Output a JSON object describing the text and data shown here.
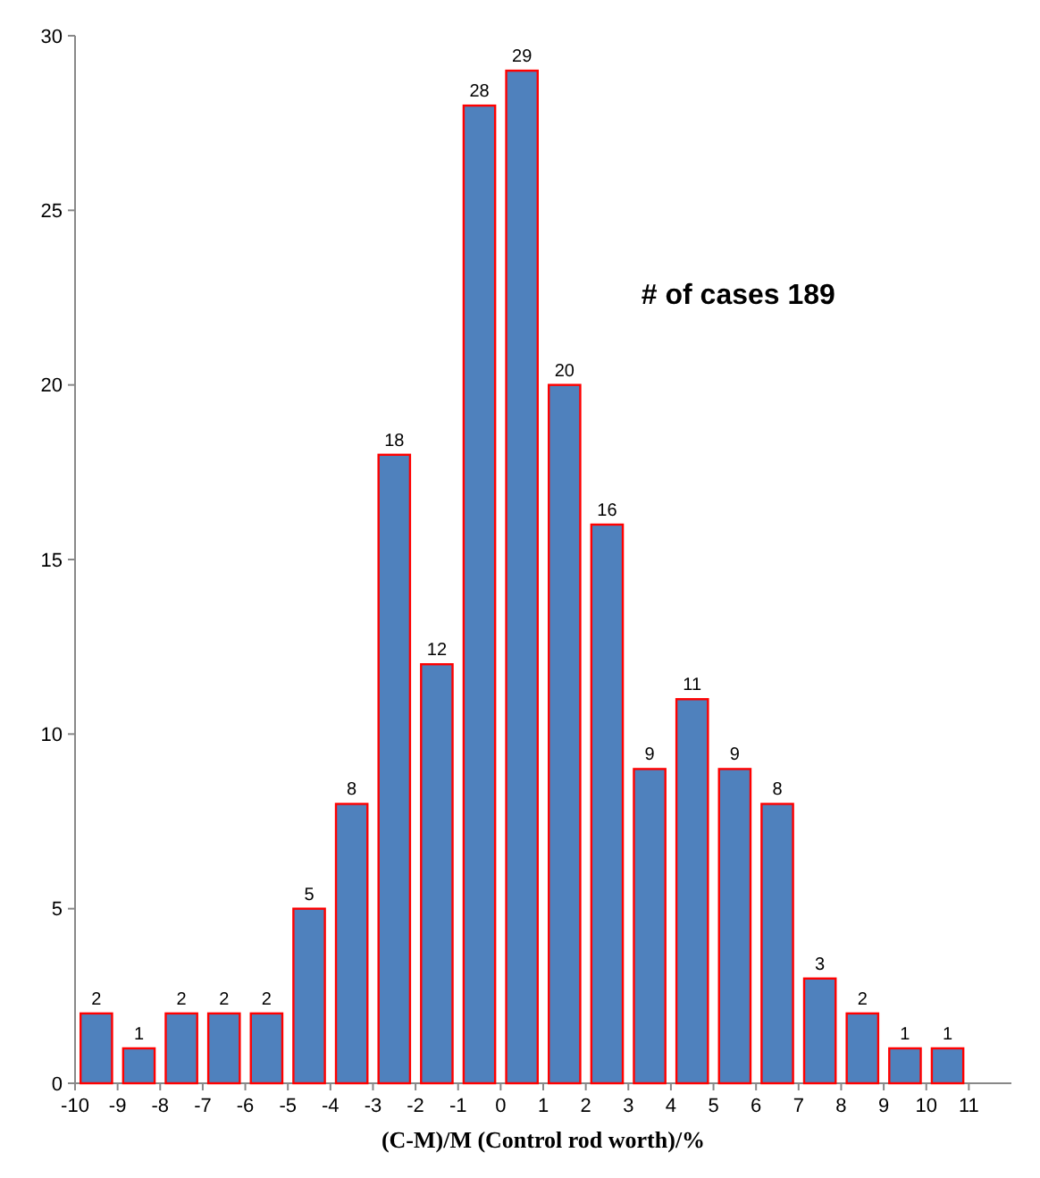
{
  "chart_data": {
    "type": "histogram",
    "xlabel": "(C-M)/M (Control rod worth)/%",
    "bins": [
      -10,
      -9,
      -8,
      -7,
      -6,
      -5,
      -4,
      -3,
      -2,
      -1,
      0,
      1,
      2,
      3,
      4,
      5,
      6,
      7,
      8,
      9,
      10,
      11
    ],
    "values": [
      2,
      1,
      2,
      2,
      2,
      5,
      8,
      18,
      12,
      28,
      29,
      20,
      16,
      9,
      11,
      9,
      8,
      3,
      2,
      1,
      1
    ],
    "color": "#4f81bd",
    "xlim": [
      -10,
      12
    ],
    "xticks": [
      -10,
      -9,
      -8,
      -7,
      -6,
      -5,
      -4,
      -3,
      -2,
      -1,
      0,
      1,
      2,
      3,
      4,
      5,
      6,
      7,
      8,
      9,
      10,
      11
    ],
    "ylim": [
      0,
      30
    ],
    "yticks": [
      0,
      5,
      10,
      15,
      20,
      25,
      30
    ],
    "grid": false,
    "data_labels": true,
    "annotations": [
      "# of cases 189"
    ]
  }
}
